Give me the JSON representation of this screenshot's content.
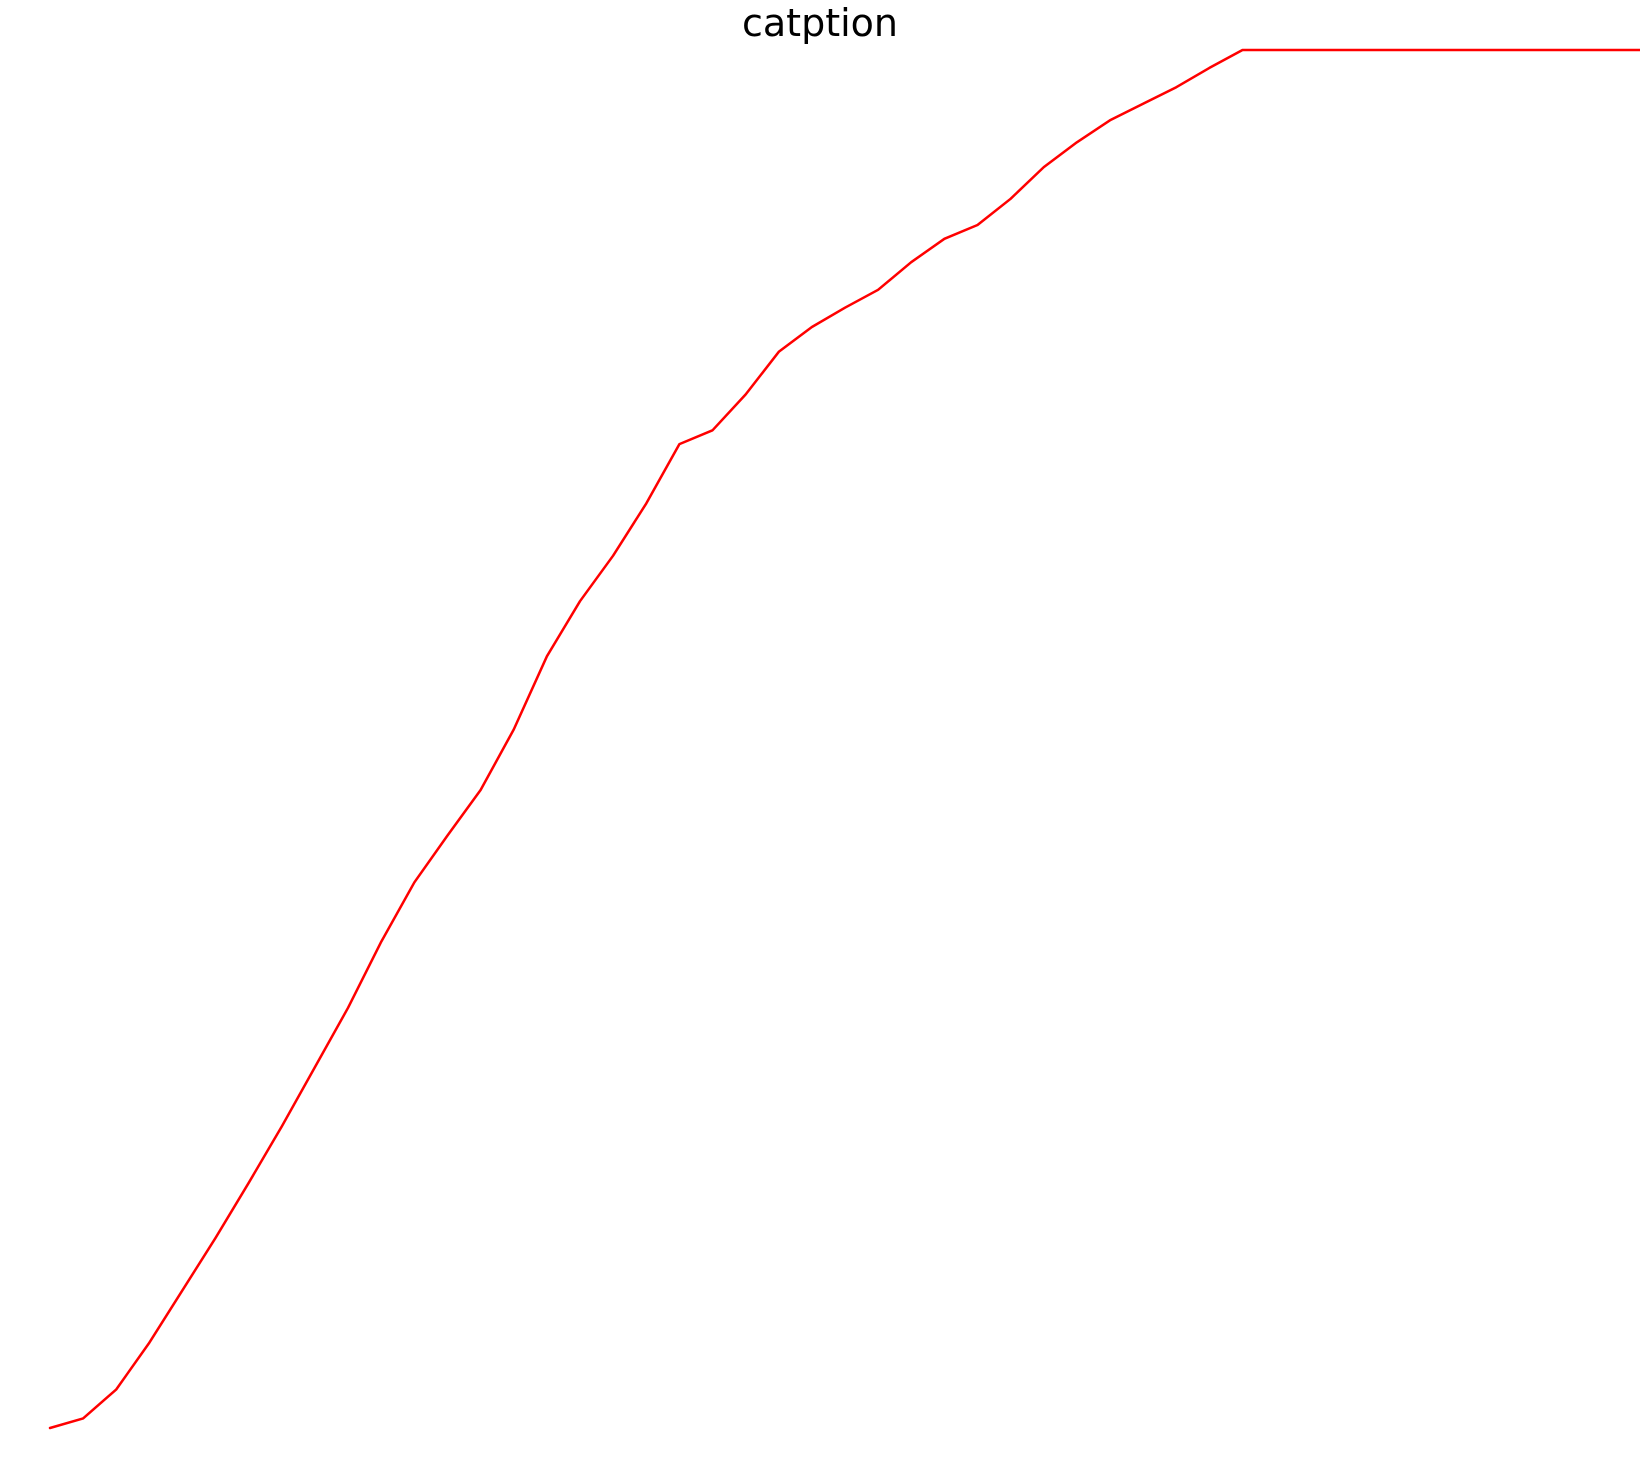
{
  "chart_data": {
    "type": "line",
    "title": "catption",
    "xlabel": "",
    "ylabel": "",
    "grid": false,
    "axes_visible": false,
    "series": [
      {
        "color": "#ff0000",
        "x": [
          0,
          1,
          2,
          3,
          4,
          5,
          6,
          7,
          8,
          9,
          10,
          11,
          12,
          13,
          14,
          15,
          16,
          17,
          18,
          19,
          20,
          21,
          22,
          23,
          24,
          25,
          26,
          27,
          28,
          29,
          30,
          31,
          32,
          33,
          34,
          35,
          36,
          37,
          38,
          39,
          40,
          41,
          42,
          43,
          44,
          45,
          46,
          47,
          48
        ],
        "y": [
          0.0,
          0.007,
          0.028,
          0.062,
          0.1,
          0.138,
          0.178,
          0.219,
          0.262,
          0.305,
          0.353,
          0.396,
          0.43,
          0.463,
          0.507,
          0.56,
          0.6,
          0.633,
          0.671,
          0.714,
          0.724,
          0.75,
          0.781,
          0.799,
          0.813,
          0.826,
          0.846,
          0.863,
          0.873,
          0.892,
          0.915,
          0.933,
          0.949,
          0.961,
          0.973,
          0.987,
          1.0,
          1.0,
          1.0,
          1.0,
          1.0,
          1.0,
          1.0,
          1.0,
          1.0,
          1.0,
          1.0,
          1.0,
          1.0
        ]
      }
    ],
    "xlim": [
      0,
      48
    ],
    "ylim": [
      0,
      1
    ]
  }
}
